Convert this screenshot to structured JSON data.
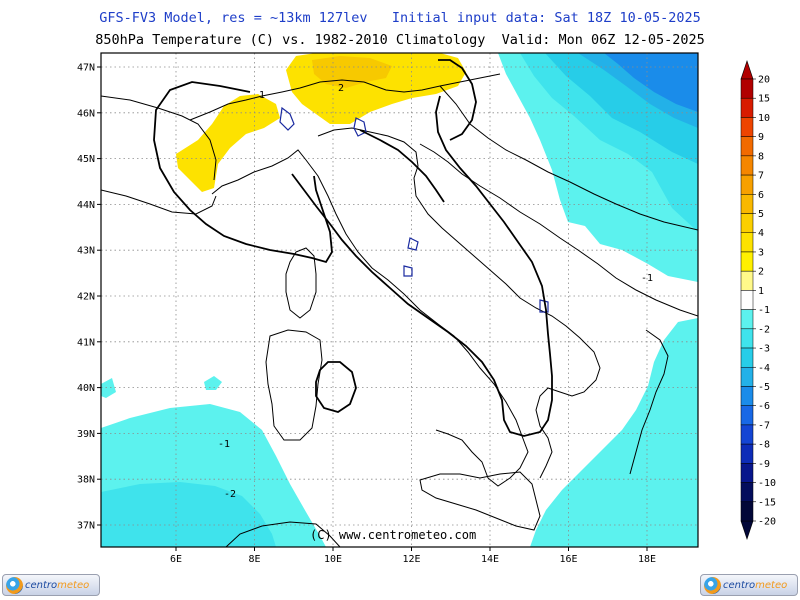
{
  "header": {
    "line1": "GFS-FV3 Model, res = ~13km 127lev   Initial input data: Sat 18Z 10-05-2025",
    "line2": "850hPa Temperature (C) vs. 1982-2010 Climatology  Valid: Mon 06Z 12-05-2025"
  },
  "map": {
    "lat_labels": [
      "47N",
      "46N",
      "45N",
      "44N",
      "43N",
      "42N",
      "41N",
      "40N",
      "39N",
      "38N",
      "37N"
    ],
    "lon_labels": [
      "6E",
      "8E",
      "10E",
      "12E",
      "14E",
      "16E",
      "18E"
    ],
    "credit": "(C) www.centrometeo.com",
    "contour_labels": [
      "2",
      "1",
      "-1",
      "-1",
      "-2"
    ]
  },
  "colorbar": {
    "labels": [
      "20",
      "15",
      "10",
      "9",
      "8",
      "7",
      "6",
      "5",
      "4",
      "3",
      "2",
      "1",
      "-1",
      "-2",
      "-3",
      "-4",
      "-5",
      "-6",
      "-7",
      "-8",
      "-9",
      "-10",
      "-15",
      "-20"
    ],
    "colors": [
      "#b10000",
      "#d81b00",
      "#ee4400",
      "#f26a00",
      "#f58600",
      "#f7a000",
      "#f9b800",
      "#fbcf00",
      "#fde200",
      "#fff000",
      "#fff98a",
      "#ffffff",
      "#5cf2ee",
      "#3fe3ec",
      "#27cde8",
      "#23b1e8",
      "#1a8cea",
      "#1868e6",
      "#1445d4",
      "#0d2cb8",
      "#08168c",
      "#040d5c",
      "#020738"
    ]
  },
  "logos": {
    "left": {
      "word1": "centro",
      "word2": "meteo"
    },
    "right": {
      "word1": "centro",
      "word2": "meteo"
    }
  },
  "colors": {
    "cyan_light": "#5cf2ee",
    "cyan_mid": "#3fe3ec",
    "blue_mid": "#23b1e8",
    "blue_dark": "#1a8cea",
    "yellow": "#fde200",
    "coast": "#000000",
    "lakes": "#1a2aa0"
  }
}
